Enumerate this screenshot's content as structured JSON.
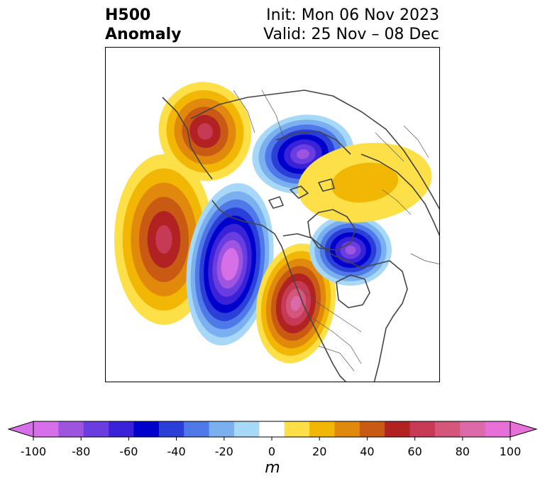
{
  "title": {
    "line1": "H500",
    "line2": "Anomaly",
    "init": "Init: Mon 06 Nov 2023",
    "valid": "Valid: 25 Nov – 08 Dec"
  },
  "colorbar": {
    "unit": "m",
    "tick_labels": [
      "-100",
      "-80",
      "-60",
      "-40",
      "-20",
      "0",
      "20",
      "40",
      "60",
      "80",
      "100"
    ],
    "levels": [
      -100,
      -90,
      -80,
      -70,
      -60,
      -50,
      -40,
      -30,
      -20,
      -10,
      10,
      20,
      30,
      40,
      50,
      60,
      70,
      80,
      90,
      100
    ],
    "colors": [
      "#d66fe8",
      "#9d55e0",
      "#6a3de0",
      "#3a22d8",
      "#0000cc",
      "#2a3ed8",
      "#4f78e8",
      "#7ab0f0",
      "#a8d8f8",
      "#ffffff",
      "#fde047",
      "#f2b705",
      "#e0890d",
      "#c85a14",
      "#b22222",
      "#c73a55",
      "#d4567a",
      "#dc6aa8",
      "#e66fd8"
    ],
    "extend": "both"
  },
  "anomalies": [
    {
      "name": "ne-pacific-high",
      "sign": "positive",
      "peak_m": 60
    },
    {
      "name": "siberia-high",
      "sign": "positive",
      "peak_m": 60
    },
    {
      "name": "arctic-low",
      "sign": "negative",
      "peak_m": -80
    },
    {
      "name": "alaska-low",
      "sign": "negative",
      "peak_m": -100
    },
    {
      "name": "eastern-north-america-high",
      "sign": "positive",
      "peak_m": 80
    },
    {
      "name": "north-atlantic-low",
      "sign": "negative",
      "peak_m": -80
    },
    {
      "name": "europe-high",
      "sign": "positive",
      "peak_m": 20
    }
  ]
}
